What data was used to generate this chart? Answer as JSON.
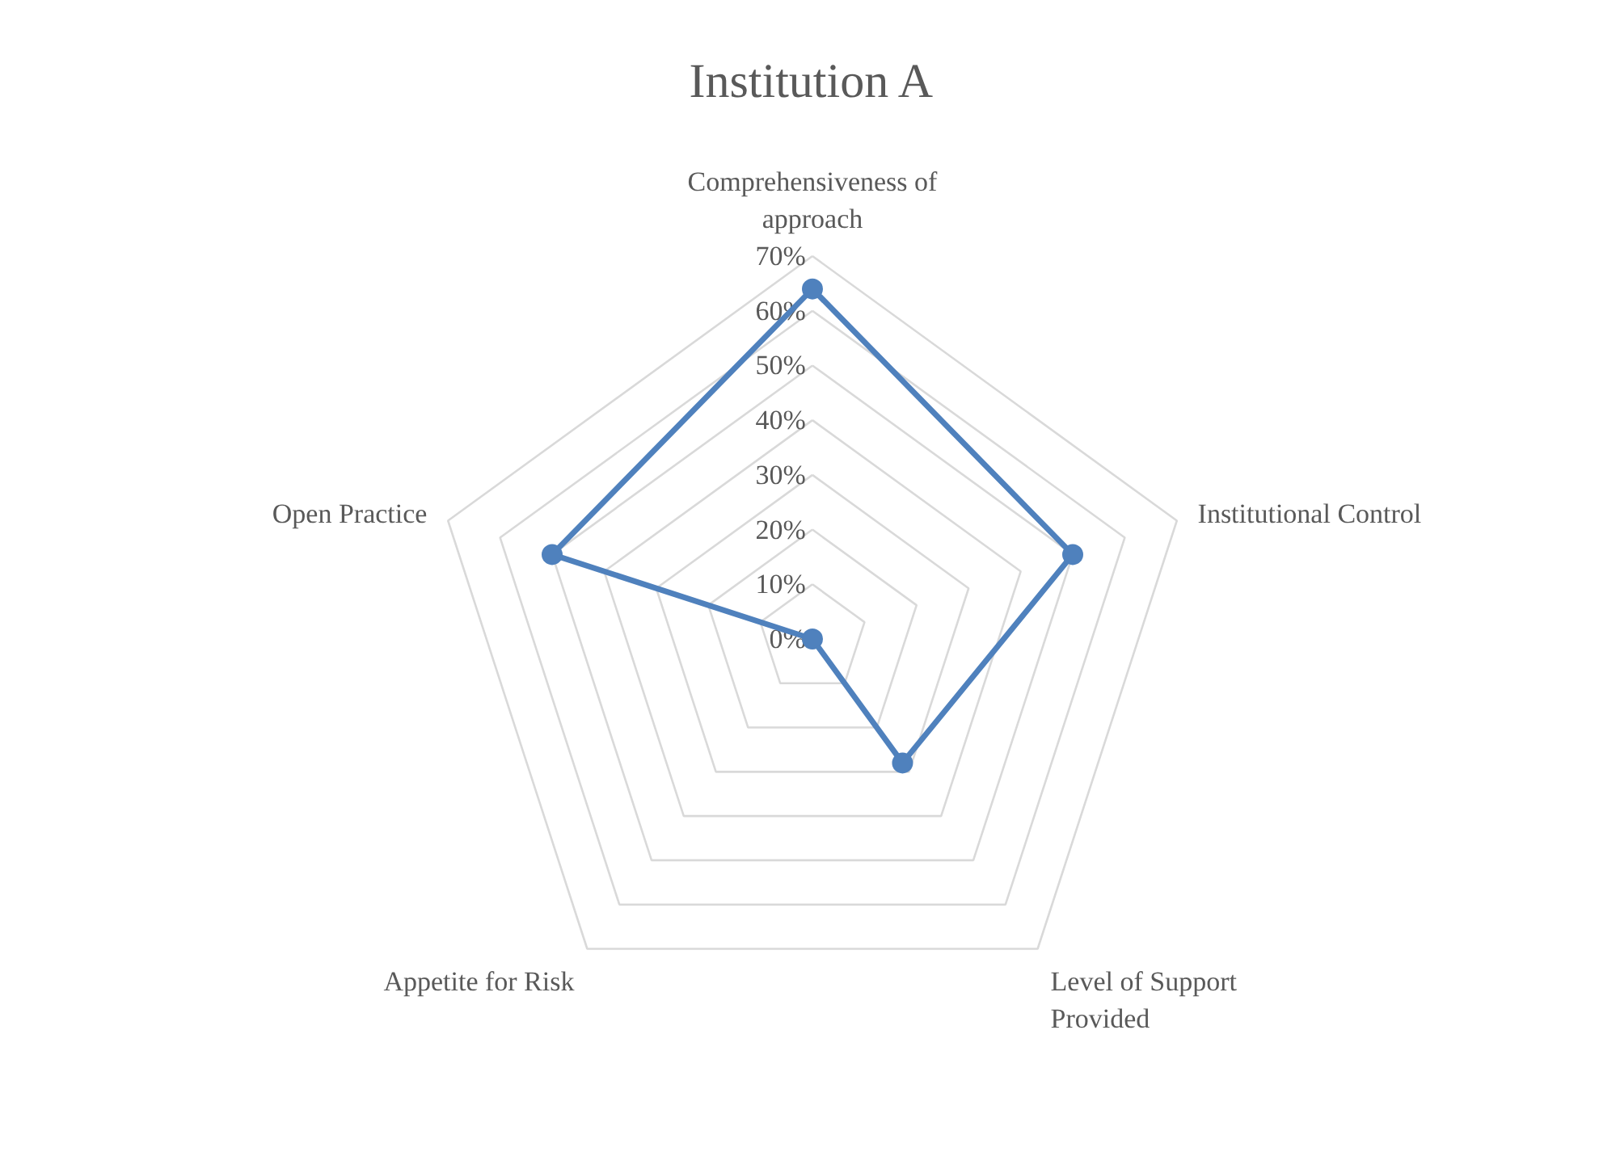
{
  "chart_data": {
    "type": "radar",
    "title": "Institution A",
    "categories": [
      "Comprehensiveness of approach",
      "Institutional Control",
      "Level of Support Provided",
      "Appetite for Risk",
      "Open Practice"
    ],
    "series": [
      {
        "color": "#4f81bd",
        "values": [
          0.64,
          0.5,
          0.28,
          0.0,
          0.5
        ]
      }
    ],
    "ylim": [
      0,
      0.7
    ],
    "yticks": [
      {
        "value": 0,
        "label": "0%"
      },
      {
        "value": 0.1,
        "label": "10%"
      },
      {
        "value": 0.2,
        "label": "20%"
      },
      {
        "value": 0.3,
        "label": "30%"
      },
      {
        "value": 0.4,
        "label": "40%"
      },
      {
        "value": 0.5,
        "label": "50%"
      },
      {
        "value": 0.6,
        "label": "60%"
      },
      {
        "value": 0.7,
        "label": "70%"
      }
    ],
    "grid": true,
    "marker": "circle"
  }
}
